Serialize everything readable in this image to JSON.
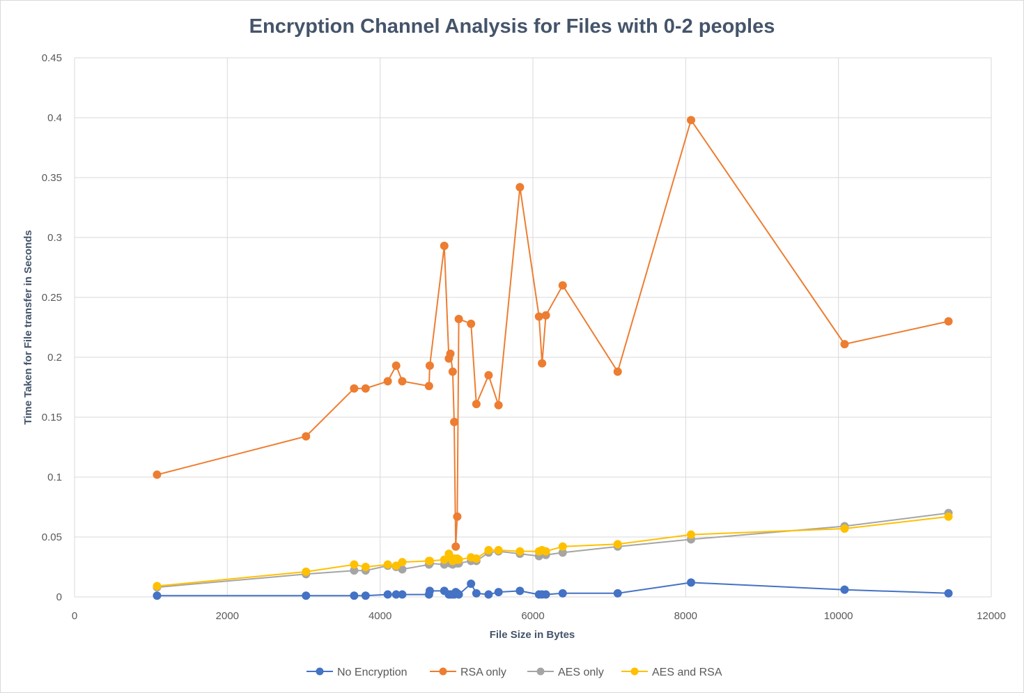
{
  "chart_data": {
    "type": "scatter",
    "title": "Encryption Channel Analysis for Files with 0-2 peoples",
    "xlabel": "File Size in Bytes",
    "ylabel": "Time Taken for File transfer in Seconds",
    "xlim": [
      0,
      12000
    ],
    "ylim": [
      0,
      0.45
    ],
    "xticks": [
      0,
      2000,
      4000,
      6000,
      8000,
      10000,
      12000
    ],
    "yticks": [
      0,
      0.05,
      0.1,
      0.15,
      0.2,
      0.25,
      0.3,
      0.35,
      0.4,
      0.45
    ],
    "ytick_labels": [
      "0",
      "0.05",
      "0.1",
      "0.15",
      "0.2",
      "0.25",
      "0.3",
      "0.35",
      "0.4",
      "0.45"
    ],
    "grid": true,
    "legend_position": "bottom",
    "x": [
      1080,
      3030,
      3660,
      3810,
      4100,
      4210,
      4290,
      4640,
      4650,
      4840,
      4900,
      4920,
      4950,
      4970,
      4990,
      5010,
      5030,
      5190,
      5260,
      5420,
      5550,
      5830,
      6080,
      6120,
      6170,
      6390,
      7110,
      8070,
      10080,
      11440
    ],
    "series": [
      {
        "name": "No Encryption",
        "color": "#4472c4",
        "values": [
          0.001,
          0.001,
          0.001,
          0.001,
          0.002,
          0.002,
          0.002,
          0.002,
          0.005,
          0.005,
          0.002,
          0.002,
          0.002,
          0.002,
          0.004,
          0.003,
          0.002,
          0.011,
          0.003,
          0.002,
          0.004,
          0.005,
          0.002,
          0.002,
          0.002,
          0.003,
          0.003,
          0.012,
          0.006,
          0.003
        ]
      },
      {
        "name": "RSA only",
        "color": "#ed7d31",
        "values": [
          0.102,
          0.134,
          0.174,
          0.174,
          0.18,
          0.193,
          0.18,
          0.176,
          0.193,
          0.293,
          0.199,
          0.203,
          0.188,
          0.146,
          0.042,
          0.067,
          0.232,
          0.228,
          0.161,
          0.185,
          0.16,
          0.342,
          0.234,
          0.195,
          0.235,
          0.26,
          0.188,
          0.398,
          0.211,
          0.23
        ]
      },
      {
        "name": "AES only",
        "color": "#a5a5a5",
        "values": [
          0.008,
          0.019,
          0.022,
          0.022,
          0.026,
          0.025,
          0.023,
          0.027,
          0.028,
          0.027,
          0.029,
          0.028,
          0.027,
          0.028,
          0.029,
          0.028,
          0.028,
          0.03,
          0.03,
          0.037,
          0.038,
          0.036,
          0.034,
          0.036,
          0.035,
          0.037,
          0.042,
          0.048,
          0.059,
          0.07
        ]
      },
      {
        "name": "AES and RSA",
        "color": "#ffc000",
        "values": [
          0.009,
          0.021,
          0.027,
          0.025,
          0.027,
          0.026,
          0.029,
          0.03,
          0.03,
          0.031,
          0.036,
          0.033,
          0.03,
          0.032,
          0.031,
          0.032,
          0.031,
          0.033,
          0.032,
          0.039,
          0.039,
          0.038,
          0.038,
          0.039,
          0.038,
          0.042,
          0.044,
          0.052,
          0.057,
          0.067
        ]
      }
    ]
  }
}
